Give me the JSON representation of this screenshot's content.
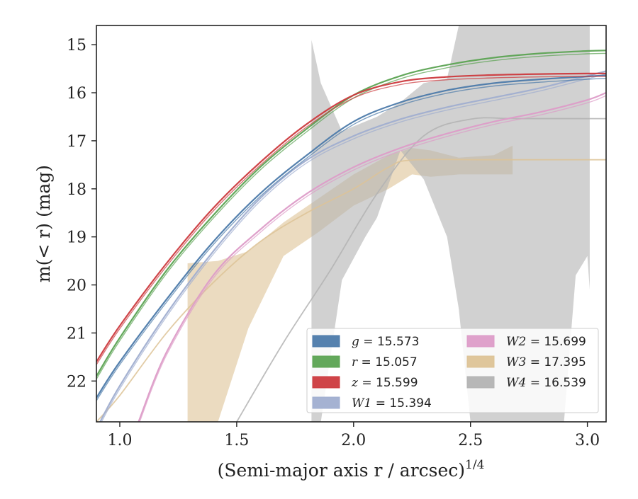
{
  "chart_data": {
    "type": "line",
    "title": "",
    "xlabel": "(Semi-major axis r / arcsec)",
    "xlabel_superscript": "1/4",
    "ylabel": "m(< r) (mag)",
    "xlim": [
      0.9,
      3.08
    ],
    "ylim": [
      22.85,
      14.6
    ],
    "y_inverted": true,
    "grid": false,
    "legend_position": "lower-right",
    "x_ticks": [
      1.0,
      1.5,
      2.0,
      2.5,
      3.0
    ],
    "x_tick_labels": [
      "1.0",
      "1.5",
      "2.0",
      "2.5",
      "3.0"
    ],
    "y_ticks": [
      15,
      16,
      17,
      18,
      19,
      20,
      21,
      22
    ],
    "y_tick_labels": [
      "15",
      "16",
      "17",
      "18",
      "19",
      "20",
      "21",
      "22"
    ],
    "series": [
      {
        "name": "g = 15.573",
        "legend_symbol": "g",
        "legend_value": "15.573",
        "color": "#4c7aaa",
        "x": [
          0.9,
          1.0,
          1.2,
          1.4,
          1.6,
          1.8,
          2.0,
          2.2,
          2.4,
          2.6,
          2.8,
          3.0,
          3.08
        ],
        "y": [
          22.35,
          21.6,
          20.3,
          19.1,
          18.1,
          17.3,
          16.6,
          16.2,
          15.95,
          15.8,
          15.72,
          15.66,
          15.64
        ]
      },
      {
        "name": "r = 15.057",
        "legend_symbol": "r",
        "legend_value": "15.057",
        "color": "#5ba352",
        "x": [
          0.9,
          1.0,
          1.2,
          1.4,
          1.6,
          1.8,
          2.0,
          2.2,
          2.4,
          2.6,
          2.8,
          3.0,
          3.08
        ],
        "y": [
          21.9,
          21.1,
          19.7,
          18.55,
          17.55,
          16.75,
          16.05,
          15.65,
          15.42,
          15.27,
          15.18,
          15.13,
          15.12
        ]
      },
      {
        "name": "z = 15.599",
        "legend_symbol": "z",
        "legend_value": "15.599",
        "color": "#cc3a3e",
        "x": [
          0.9,
          1.0,
          1.2,
          1.4,
          1.6,
          1.8,
          2.0,
          2.2,
          2.4,
          2.6,
          2.8,
          3.0,
          3.08
        ],
        "y": [
          21.6,
          20.85,
          19.55,
          18.4,
          17.45,
          16.65,
          16.05,
          15.77,
          15.67,
          15.63,
          15.61,
          15.6,
          15.6
        ]
      },
      {
        "name": "W1 = 15.394",
        "legend_symbol": "W1",
        "legend_value": "15.394",
        "color": "#a0aed0",
        "x": [
          0.9,
          1.0,
          1.2,
          1.4,
          1.6,
          1.8,
          2.0,
          2.2,
          2.4,
          2.6,
          2.8,
          3.0,
          3.08
        ],
        "y": [
          23.0,
          22.1,
          20.6,
          19.3,
          18.2,
          17.4,
          16.9,
          16.55,
          16.3,
          16.1,
          15.9,
          15.65,
          15.55
        ]
      },
      {
        "name": "W2 = 15.699",
        "legend_symbol": "W2",
        "legend_value": "15.699",
        "color": "#dd9cc8",
        "x": [
          1.08,
          1.2,
          1.4,
          1.6,
          1.8,
          2.0,
          2.2,
          2.4,
          2.6,
          2.8,
          3.0,
          3.08
        ],
        "y": [
          22.85,
          21.4,
          19.8,
          18.85,
          18.1,
          17.55,
          17.15,
          16.85,
          16.6,
          16.4,
          16.15,
          16.0
        ]
      },
      {
        "name": "W3 = 17.395",
        "legend_symbol": "W3",
        "legend_value": "17.395",
        "color": "#ddc396",
        "x": [
          0.9,
          1.0,
          1.2,
          1.4,
          1.6,
          1.8,
          2.0,
          2.15,
          2.25,
          2.6,
          3.08
        ],
        "y": [
          22.85,
          22.3,
          21.0,
          19.95,
          19.1,
          18.5,
          18.0,
          17.55,
          17.4,
          17.395,
          17.395
        ],
        "band_x": [
          1.29,
          1.42,
          1.55,
          1.7,
          1.85,
          2.0,
          2.15,
          2.25,
          2.33,
          2.45,
          2.6,
          2.68
        ],
        "band_upper": [
          19.55,
          19.5,
          19.3,
          18.7,
          18.2,
          17.7,
          17.3,
          17.15,
          17.2,
          17.35,
          17.3,
          17.1
        ],
        "band_lower": [
          22.85,
          22.85,
          20.9,
          19.4,
          18.9,
          18.35,
          18.0,
          17.7,
          17.75,
          17.7,
          17.7,
          17.7
        ]
      },
      {
        "name": "W4 = 16.539",
        "legend_symbol": "W4",
        "legend_value": "16.539",
        "color": "#b3b3b3",
        "x": [
          1.5,
          1.7,
          1.9,
          2.1,
          2.3,
          2.5,
          2.7,
          3.08
        ],
        "y": [
          22.85,
          21.2,
          19.7,
          18.1,
          16.9,
          16.55,
          16.539,
          16.539
        ],
        "band_x": [
          1.82,
          1.82,
          1.86,
          1.95,
          2.05,
          2.1,
          2.2,
          2.3,
          2.4,
          2.45,
          2.5,
          2.6,
          2.65,
          2.7,
          2.72,
          2.8,
          2.9,
          2.95,
          3.0,
          3.01
        ],
        "band_upper": [
          22.85,
          14.9,
          15.8,
          16.8,
          16.6,
          16.5,
          16.2,
          15.8,
          15.7,
          14.6,
          14.6,
          14.6,
          14.6,
          14.6,
          14.6,
          14.6,
          14.6,
          14.6,
          14.6,
          14.6
        ],
        "band_lower": [
          22.85,
          22.85,
          22.85,
          19.9,
          19.0,
          18.6,
          17.2,
          17.8,
          19.0,
          20.5,
          22.85,
          22.85,
          22.85,
          22.85,
          22.85,
          22.85,
          22.85,
          19.8,
          19.4,
          20.1
        ]
      }
    ]
  }
}
